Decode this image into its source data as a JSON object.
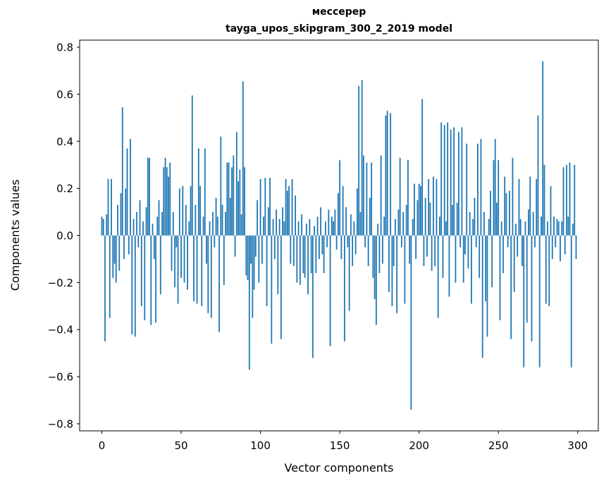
{
  "chart_data": {
    "type": "bar",
    "title_lines": [
      "мессерер",
      "tayga_upos_skipgram_300_2_2019 model"
    ],
    "title": "мессерер\ntayga_upos_skipgram_300_2_2019 model",
    "xlabel": "Vector components",
    "ylabel": "Components values",
    "bar_color": "#1f77b4",
    "axis_color": "#000000",
    "x_ticks": [
      0,
      50,
      100,
      150,
      200,
      250,
      300
    ],
    "y_ticks": [
      -0.8,
      -0.6,
      -0.4,
      -0.2,
      0.0,
      0.2,
      0.4,
      0.6,
      0.8
    ],
    "xlim": [
      -14,
      313
    ],
    "ylim": [
      -0.83,
      0.83
    ],
    "x_start": 0,
    "values": [
      0.08,
      0.07,
      -0.45,
      0.09,
      0.24,
      -0.35,
      0.24,
      -0.18,
      -0.12,
      -0.2,
      0.13,
      -0.15,
      0.18,
      0.545,
      -0.1,
      0.2,
      0.37,
      -0.08,
      0.41,
      -0.42,
      0.07,
      -0.43,
      0.1,
      -0.05,
      0.15,
      -0.3,
      0.06,
      -0.36,
      0.12,
      0.33,
      0.33,
      -0.38,
      0.05,
      -0.1,
      -0.37,
      0.08,
      0.15,
      -0.25,
      0.1,
      0.29,
      0.33,
      0.29,
      0.25,
      0.31,
      -0.15,
      0.1,
      -0.22,
      -0.05,
      -0.29,
      0.2,
      -0.18,
      0.21,
      -0.2,
      0.13,
      -0.23,
      0.06,
      0.21,
      0.595,
      -0.28,
      0.13,
      -0.29,
      0.37,
      0.21,
      -0.3,
      0.08,
      0.37,
      -0.12,
      -0.33,
      0.06,
      -0.35,
      0.1,
      -0.05,
      0.16,
      0.08,
      -0.41,
      0.42,
      0.13,
      -0.21,
      0.1,
      0.31,
      0.31,
      0.16,
      0.29,
      0.34,
      -0.09,
      0.44,
      0.23,
      0.28,
      0.09,
      0.655,
      0.29,
      -0.17,
      -0.19,
      -0.57,
      -0.12,
      -0.35,
      -0.23,
      -0.09,
      0.15,
      -0.2,
      0.24,
      -0.12,
      0.08,
      0.245,
      -0.3,
      0.12,
      0.245,
      -0.46,
      0.07,
      -0.1,
      0.11,
      -0.25,
      0.07,
      -0.44,
      0.12,
      0.06,
      0.24,
      0.19,
      0.21,
      -0.12,
      0.24,
      -0.13,
      0.17,
      -0.2,
      0.06,
      -0.21,
      0.09,
      -0.16,
      -0.18,
      0.05,
      -0.25,
      0.07,
      -0.16,
      -0.52,
      0.04,
      -0.16,
      0.08,
      -0.1,
      0.12,
      -0.08,
      -0.16,
      0.06,
      -0.05,
      0.11,
      -0.47,
      0.08,
      0.06,
      0.11,
      -0.06,
      0.18,
      0.32,
      -0.1,
      0.21,
      -0.45,
      0.12,
      -0.05,
      -0.32,
      0.09,
      -0.13,
      0.06,
      -0.08,
      0.2,
      0.635,
      0.1,
      0.66,
      0.34,
      -0.05,
      0.31,
      -0.13,
      0.16,
      0.31,
      -0.18,
      -0.27,
      -0.38,
      0.05,
      -0.16,
      0.34,
      -0.12,
      0.08,
      0.51,
      0.53,
      -0.24,
      0.52,
      -0.3,
      -0.13,
      0.07,
      -0.33,
      0.11,
      0.33,
      -0.05,
      0.1,
      -0.29,
      0.13,
      0.32,
      -0.12,
      -0.74,
      0.07,
      0.22,
      -0.1,
      0.15,
      0.22,
      0.21,
      0.58,
      -0.13,
      0.16,
      -0.09,
      0.24,
      0.14,
      -0.15,
      0.25,
      -0.13,
      0.24,
      -0.35,
      0.08,
      0.48,
      -0.18,
      0.47,
      0.06,
      0.48,
      -0.26,
      0.45,
      0.13,
      0.46,
      -0.2,
      0.14,
      0.44,
      -0.05,
      0.46,
      -0.2,
      -0.08,
      0.39,
      -0.14,
      0.1,
      -0.29,
      0.07,
      0.16,
      -0.05,
      0.39,
      -0.18,
      0.41,
      -0.52,
      0.1,
      -0.28,
      -0.43,
      0.07,
      0.19,
      -0.22,
      0.32,
      0.41,
      0.14,
      0.32,
      -0.36,
      0.06,
      -0.16,
      0.25,
      0.18,
      -0.05,
      0.19,
      -0.44,
      0.33,
      -0.24,
      0.05,
      -0.09,
      0.24,
      0.07,
      -0.13,
      -0.56,
      0.06,
      -0.37,
      0.11,
      0.25,
      -0.45,
      0.1,
      -0.05,
      0.24,
      0.51,
      -0.56,
      0.08,
      0.74,
      0.3,
      -0.29,
      0.06,
      -0.3,
      0.21,
      -0.1,
      0.08,
      -0.05,
      0.07,
      0.06,
      -0.11,
      0.06,
      0.29,
      -0.08,
      0.3,
      0.08,
      0.31,
      -0.56,
      0.05,
      0.3,
      -0.1
    ]
  }
}
